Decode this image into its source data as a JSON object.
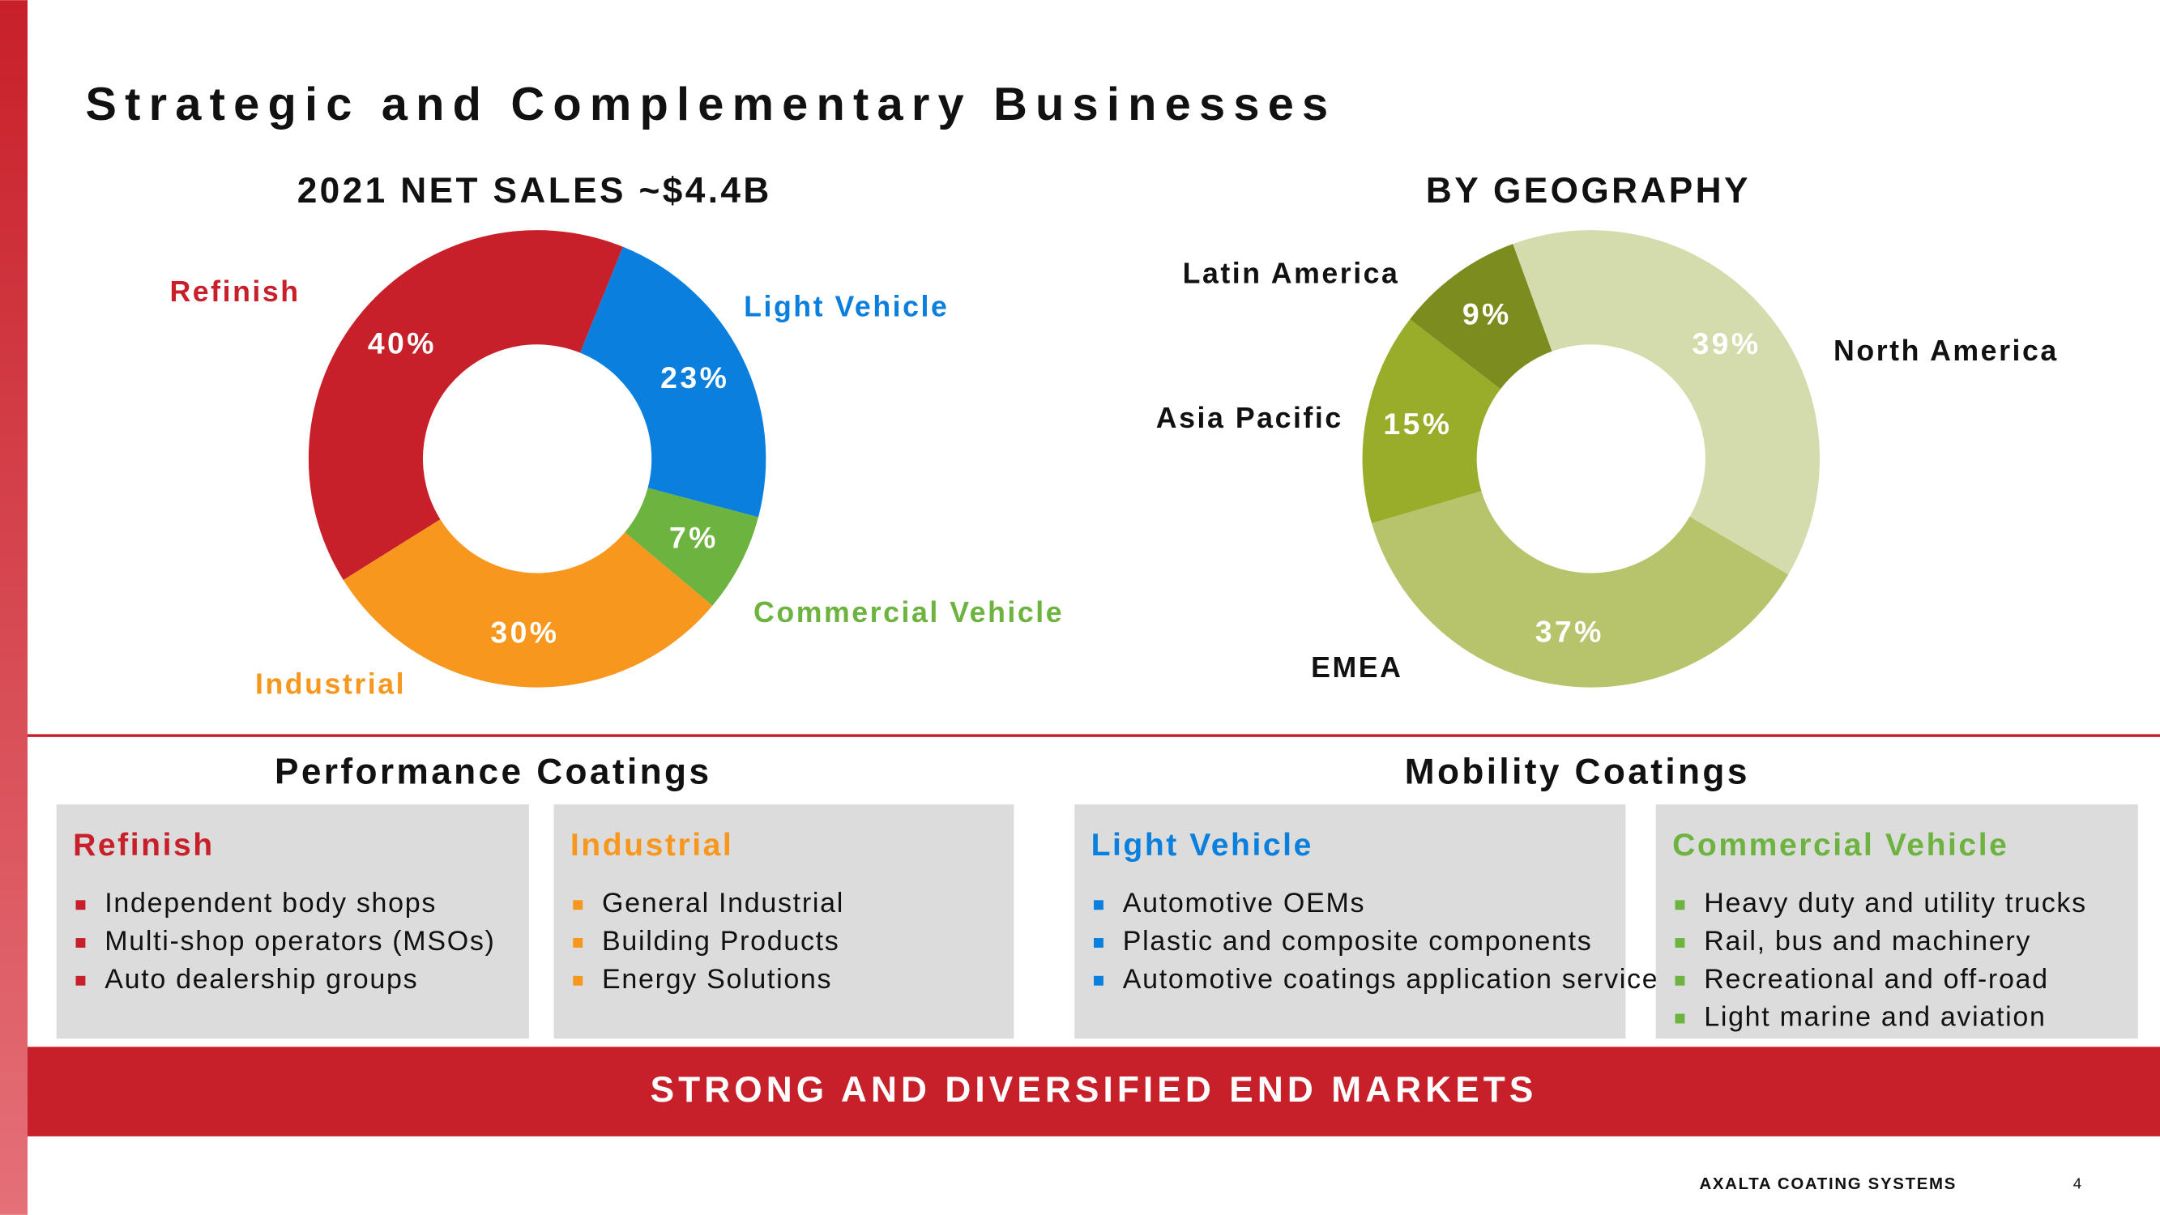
{
  "title": "Strategic and Complementary Businesses",
  "chart_data": [
    {
      "type": "pie",
      "title": "2021 NET SALES ~$4.4B",
      "categories": [
        "Light Vehicle",
        "Commercial Vehicle",
        "Industrial",
        "Refinish"
      ],
      "values": [
        23,
        7,
        30,
        40
      ],
      "value_labels": [
        "23%",
        "7%",
        "30%",
        "40%"
      ],
      "colors": [
        "#0a7fdd",
        "#6db33f",
        "#f7971e",
        "#c8202a"
      ]
    },
    {
      "type": "pie",
      "title": "BY GEOGRAPHY",
      "categories": [
        "North America",
        "EMEA",
        "Asia Pacific",
        "Latin America"
      ],
      "values": [
        39,
        37,
        15,
        9
      ],
      "value_labels": [
        "39%",
        "37%",
        "15%",
        "9%"
      ],
      "colors": [
        "#d4dcae",
        "#b8c46c",
        "#9aad2a",
        "#7d8c1e"
      ],
      "label_color": "#111111"
    }
  ],
  "sections": [
    {
      "title": "Performance Coatings",
      "boxes": [
        {
          "title": "Refinish",
          "color": "#c8202a",
          "items": [
            "Independent body shops",
            "Multi-shop operators (MSOs)",
            "Auto dealership groups"
          ]
        },
        {
          "title": "Industrial",
          "color": "#f7971e",
          "items": [
            "General Industrial",
            "Building Products",
            "Energy Solutions"
          ]
        }
      ]
    },
    {
      "title": "Mobility Coatings",
      "boxes": [
        {
          "title": "Light Vehicle",
          "color": "#0a7fdd",
          "items": [
            "Automotive OEMs",
            "Plastic and composite components",
            "Automotive coatings application services"
          ]
        },
        {
          "title": "Commercial Vehicle",
          "color": "#6db33f",
          "items": [
            "Heavy duty and utility trucks",
            "Rail, bus and machinery",
            "Recreational and off-road",
            "Light marine and aviation"
          ]
        }
      ]
    }
  ],
  "banner": "STRONG AND DIVERSIFIED END MARKETS",
  "footer": {
    "brand": "AXALTA COATING SYSTEMS",
    "page": "4"
  }
}
